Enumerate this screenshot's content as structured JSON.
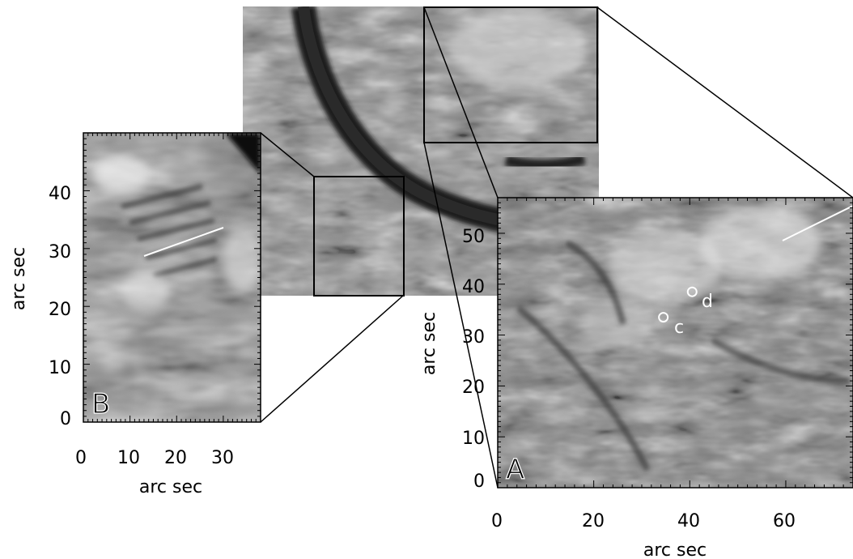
{
  "panels": {
    "b": {
      "letter": "B",
      "xlabel": "arc sec",
      "ylabel": "arc sec",
      "xticks": [
        "0",
        "10",
        "20",
        "30"
      ],
      "yticks": [
        "0",
        "10",
        "20",
        "30",
        "40"
      ]
    },
    "a": {
      "letter": "A",
      "xlabel": "arc sec",
      "ylabel": "arc sec",
      "xticks": [
        "0",
        "20",
        "40",
        "60"
      ],
      "yticks": [
        "0",
        "10",
        "20",
        "30",
        "40",
        "50"
      ],
      "markers": [
        {
          "id": "c",
          "label": "c",
          "x_arcsec": 34.5,
          "y_arcsec": 33.5
        },
        {
          "id": "d",
          "label": "d",
          "x_arcsec": 40.5,
          "y_arcsec": 38.5
        }
      ]
    }
  },
  "colors": {
    "background": "#ffffff",
    "line_markers": "#ffffff",
    "frames": "#000000"
  }
}
